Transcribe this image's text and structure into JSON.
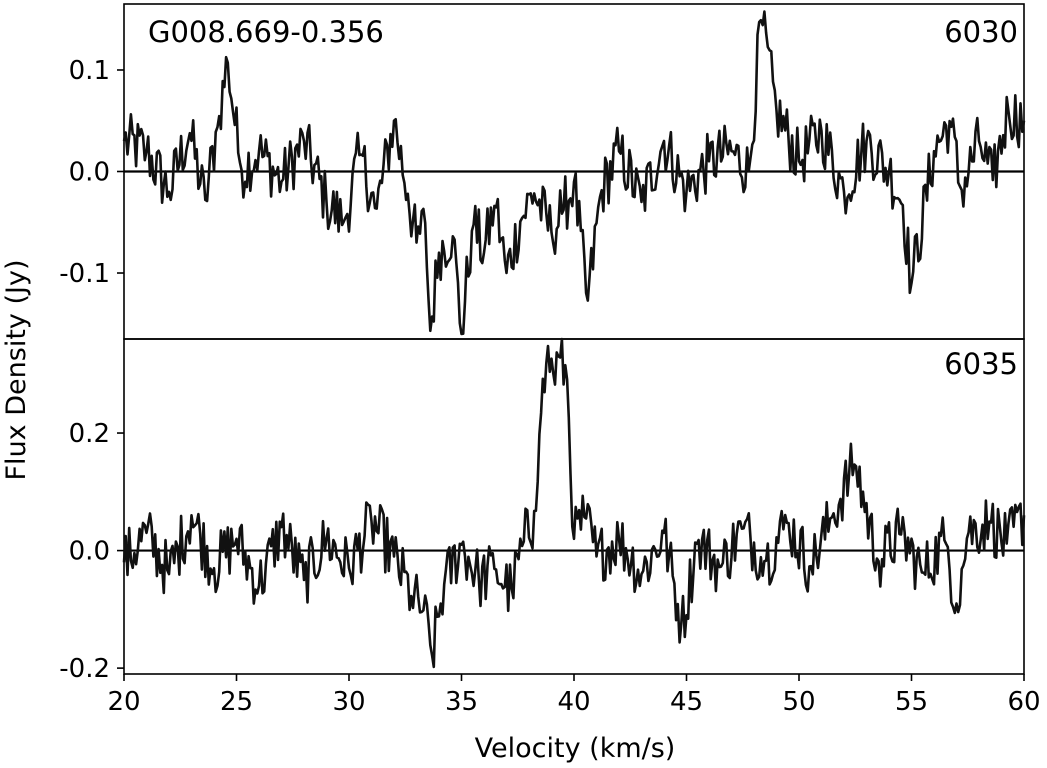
{
  "figure": {
    "ylabel": "Flux Density (Jy)",
    "xlabel": "Velocity (km/s)",
    "source_name": "G008.669-0.356"
  },
  "chart_data": [
    {
      "type": "line",
      "panel_label": "6030",
      "source_label": "G008.669-0.356",
      "xlim": [
        20,
        60
      ],
      "ylim": [
        -0.165,
        0.165
      ],
      "xticks": [
        20,
        25,
        30,
        35,
        40,
        45,
        50,
        55,
        60
      ],
      "xtick_labels": [
        "20",
        "25",
        "30",
        "35",
        "40",
        "45",
        "50",
        "55",
        "60"
      ],
      "yticks": [
        0.1,
        0.0,
        -0.1
      ],
      "ytick_labels": [
        "0.1",
        "0.0",
        "-0.1"
      ],
      "baseline": 0.0,
      "series": [
        {
          "x": [
            20.0,
            21.0,
            22.0,
            22.9,
            23.6,
            24.2,
            24.6,
            25.2,
            26.0,
            27.0,
            28.0,
            29.0,
            29.8,
            30.5,
            31.2,
            32.0,
            32.6,
            33.0,
            33.4,
            33.6,
            34.0,
            34.6,
            35.0,
            35.5,
            36.0,
            36.5,
            37.0,
            37.6,
            38.2,
            39.0,
            39.5,
            40.0,
            40.6,
            41.2,
            42.0,
            43.0,
            44.0,
            45.0,
            46.0,
            47.0,
            47.8,
            48.3,
            49.0,
            50.0,
            51.0,
            52.0,
            53.0,
            54.0,
            54.6,
            55.0,
            56.0,
            56.7,
            57.2,
            58.0,
            58.6,
            59.3,
            60.0
          ],
          "y": [
            0.03,
            0.02,
            -0.02,
            0.04,
            -0.03,
            0.05,
            0.11,
            0.0,
            0.02,
            -0.01,
            0.03,
            -0.03,
            -0.05,
            0.02,
            -0.04,
            0.05,
            -0.02,
            -0.07,
            -0.05,
            -0.16,
            -0.08,
            -0.06,
            -0.16,
            -0.05,
            -0.08,
            -0.03,
            -0.1,
            -0.05,
            -0.02,
            -0.06,
            -0.04,
            -0.01,
            -0.13,
            -0.02,
            0.02,
            -0.03,
            0.03,
            -0.02,
            0.01,
            0.02,
            0.0,
            0.15,
            0.06,
            0.01,
            0.04,
            -0.02,
            0.03,
            0.0,
            -0.03,
            -0.11,
            0.02,
            0.05,
            -0.02,
            0.03,
            -0.01,
            0.06,
            0.05
          ]
        }
      ]
    },
    {
      "type": "line",
      "panel_label": "6035",
      "xlim": [
        20,
        60
      ],
      "ylim": [
        -0.21,
        0.36
      ],
      "xticks": [
        20,
        25,
        30,
        35,
        40,
        45,
        50,
        55,
        60
      ],
      "xtick_labels": [
        "20",
        "25",
        "30",
        "35",
        "40",
        "45",
        "50",
        "55",
        "60"
      ],
      "yticks": [
        0.2,
        0.0,
        -0.2
      ],
      "ytick_labels": [
        "0.2",
        "0.0",
        "-0.2"
      ],
      "baseline": 0.0,
      "series": [
        {
          "x": [
            20.0,
            21.0,
            22.0,
            23.0,
            24.0,
            25.0,
            26.0,
            27.0,
            28.0,
            29.0,
            30.0,
            31.0,
            32.0,
            32.8,
            33.3,
            33.7,
            34.2,
            35.0,
            35.8,
            36.5,
            37.2,
            37.8,
            38.2,
            38.5,
            38.8,
            39.1,
            39.4,
            39.7,
            40.0,
            40.5,
            41.0,
            42.0,
            43.0,
            44.0,
            44.8,
            45.5,
            46.5,
            47.5,
            48.5,
            49.5,
            50.5,
            51.5,
            52.5,
            53.5,
            54.5,
            55.5,
            56.5,
            57.0,
            57.5,
            58.5,
            59.2,
            60.0
          ],
          "y": [
            -0.02,
            0.03,
            -0.04,
            0.06,
            -0.03,
            0.02,
            -0.06,
            0.04,
            -0.05,
            0.02,
            -0.03,
            0.05,
            -0.01,
            -0.08,
            -0.1,
            -0.18,
            -0.06,
            0.01,
            -0.05,
            -0.03,
            -0.07,
            0.02,
            0.05,
            0.22,
            0.33,
            0.3,
            0.33,
            0.29,
            0.02,
            0.06,
            -0.01,
            0.02,
            -0.04,
            0.03,
            -0.13,
            0.02,
            -0.03,
            0.04,
            -0.02,
            0.05,
            -0.03,
            0.06,
            0.15,
            -0.02,
            0.03,
            -0.04,
            0.02,
            -0.09,
            0.03,
            0.05,
            0.01,
            0.06
          ]
        }
      ]
    }
  ]
}
